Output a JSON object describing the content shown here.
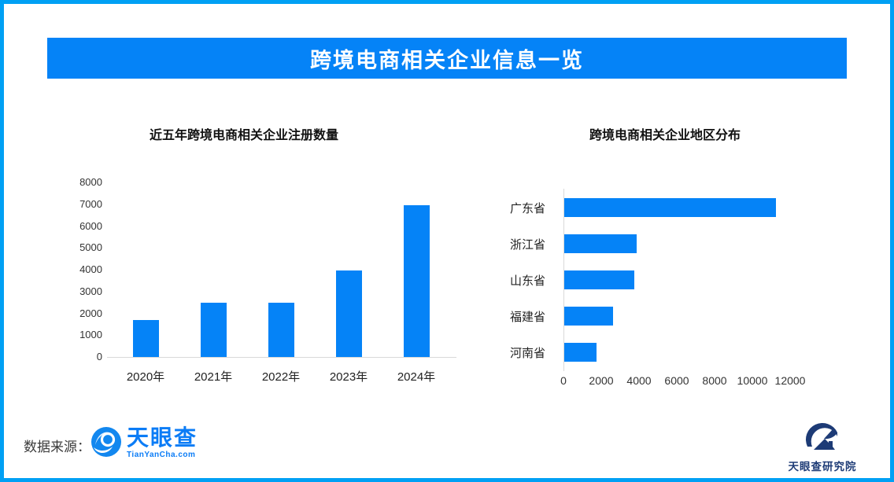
{
  "page": {
    "banner_title": "跨境电商相关企业信息一览",
    "colors": {
      "banner_blue": "#0583F7",
      "border_blue": "#00A0F4",
      "bar_blue": "#0583F7",
      "axis_gray": "#D9D9D9",
      "logo_blue": "#0B7CF6",
      "logo_navy": "#1D3B76"
    }
  },
  "footer": {
    "source_label": "数据来源：",
    "tianyancha_name": "天眼查",
    "tianyancha_domain": "TianYanCha.com",
    "research_institute": "天眼查研究院"
  },
  "chart_data": [
    {
      "type": "bar",
      "title": "近五年跨境电商相关企业注册数量",
      "categories": [
        "2020年",
        "2021年",
        "2022年",
        "2023年",
        "2024年"
      ],
      "values": [
        1700,
        2500,
        2500,
        3950,
        6950
      ],
      "xlabel": "",
      "ylabel": "",
      "ylim": [
        0,
        8000
      ],
      "ytick_step": 1000,
      "grid": false,
      "legend": false,
      "bar_color": "#0583F7"
    },
    {
      "type": "bar-horizontal",
      "title": "跨境电商相关企业地区分布",
      "categories": [
        "广东省",
        "浙江省",
        "山东省",
        "福建省",
        "河南省"
      ],
      "values": [
        11200,
        3850,
        3700,
        2600,
        1700
      ],
      "xlabel": "",
      "ylabel": "",
      "xlim": [
        0,
        12000
      ],
      "xtick_step": 2000,
      "grid": false,
      "legend": false,
      "bar_color": "#0583F7"
    }
  ]
}
